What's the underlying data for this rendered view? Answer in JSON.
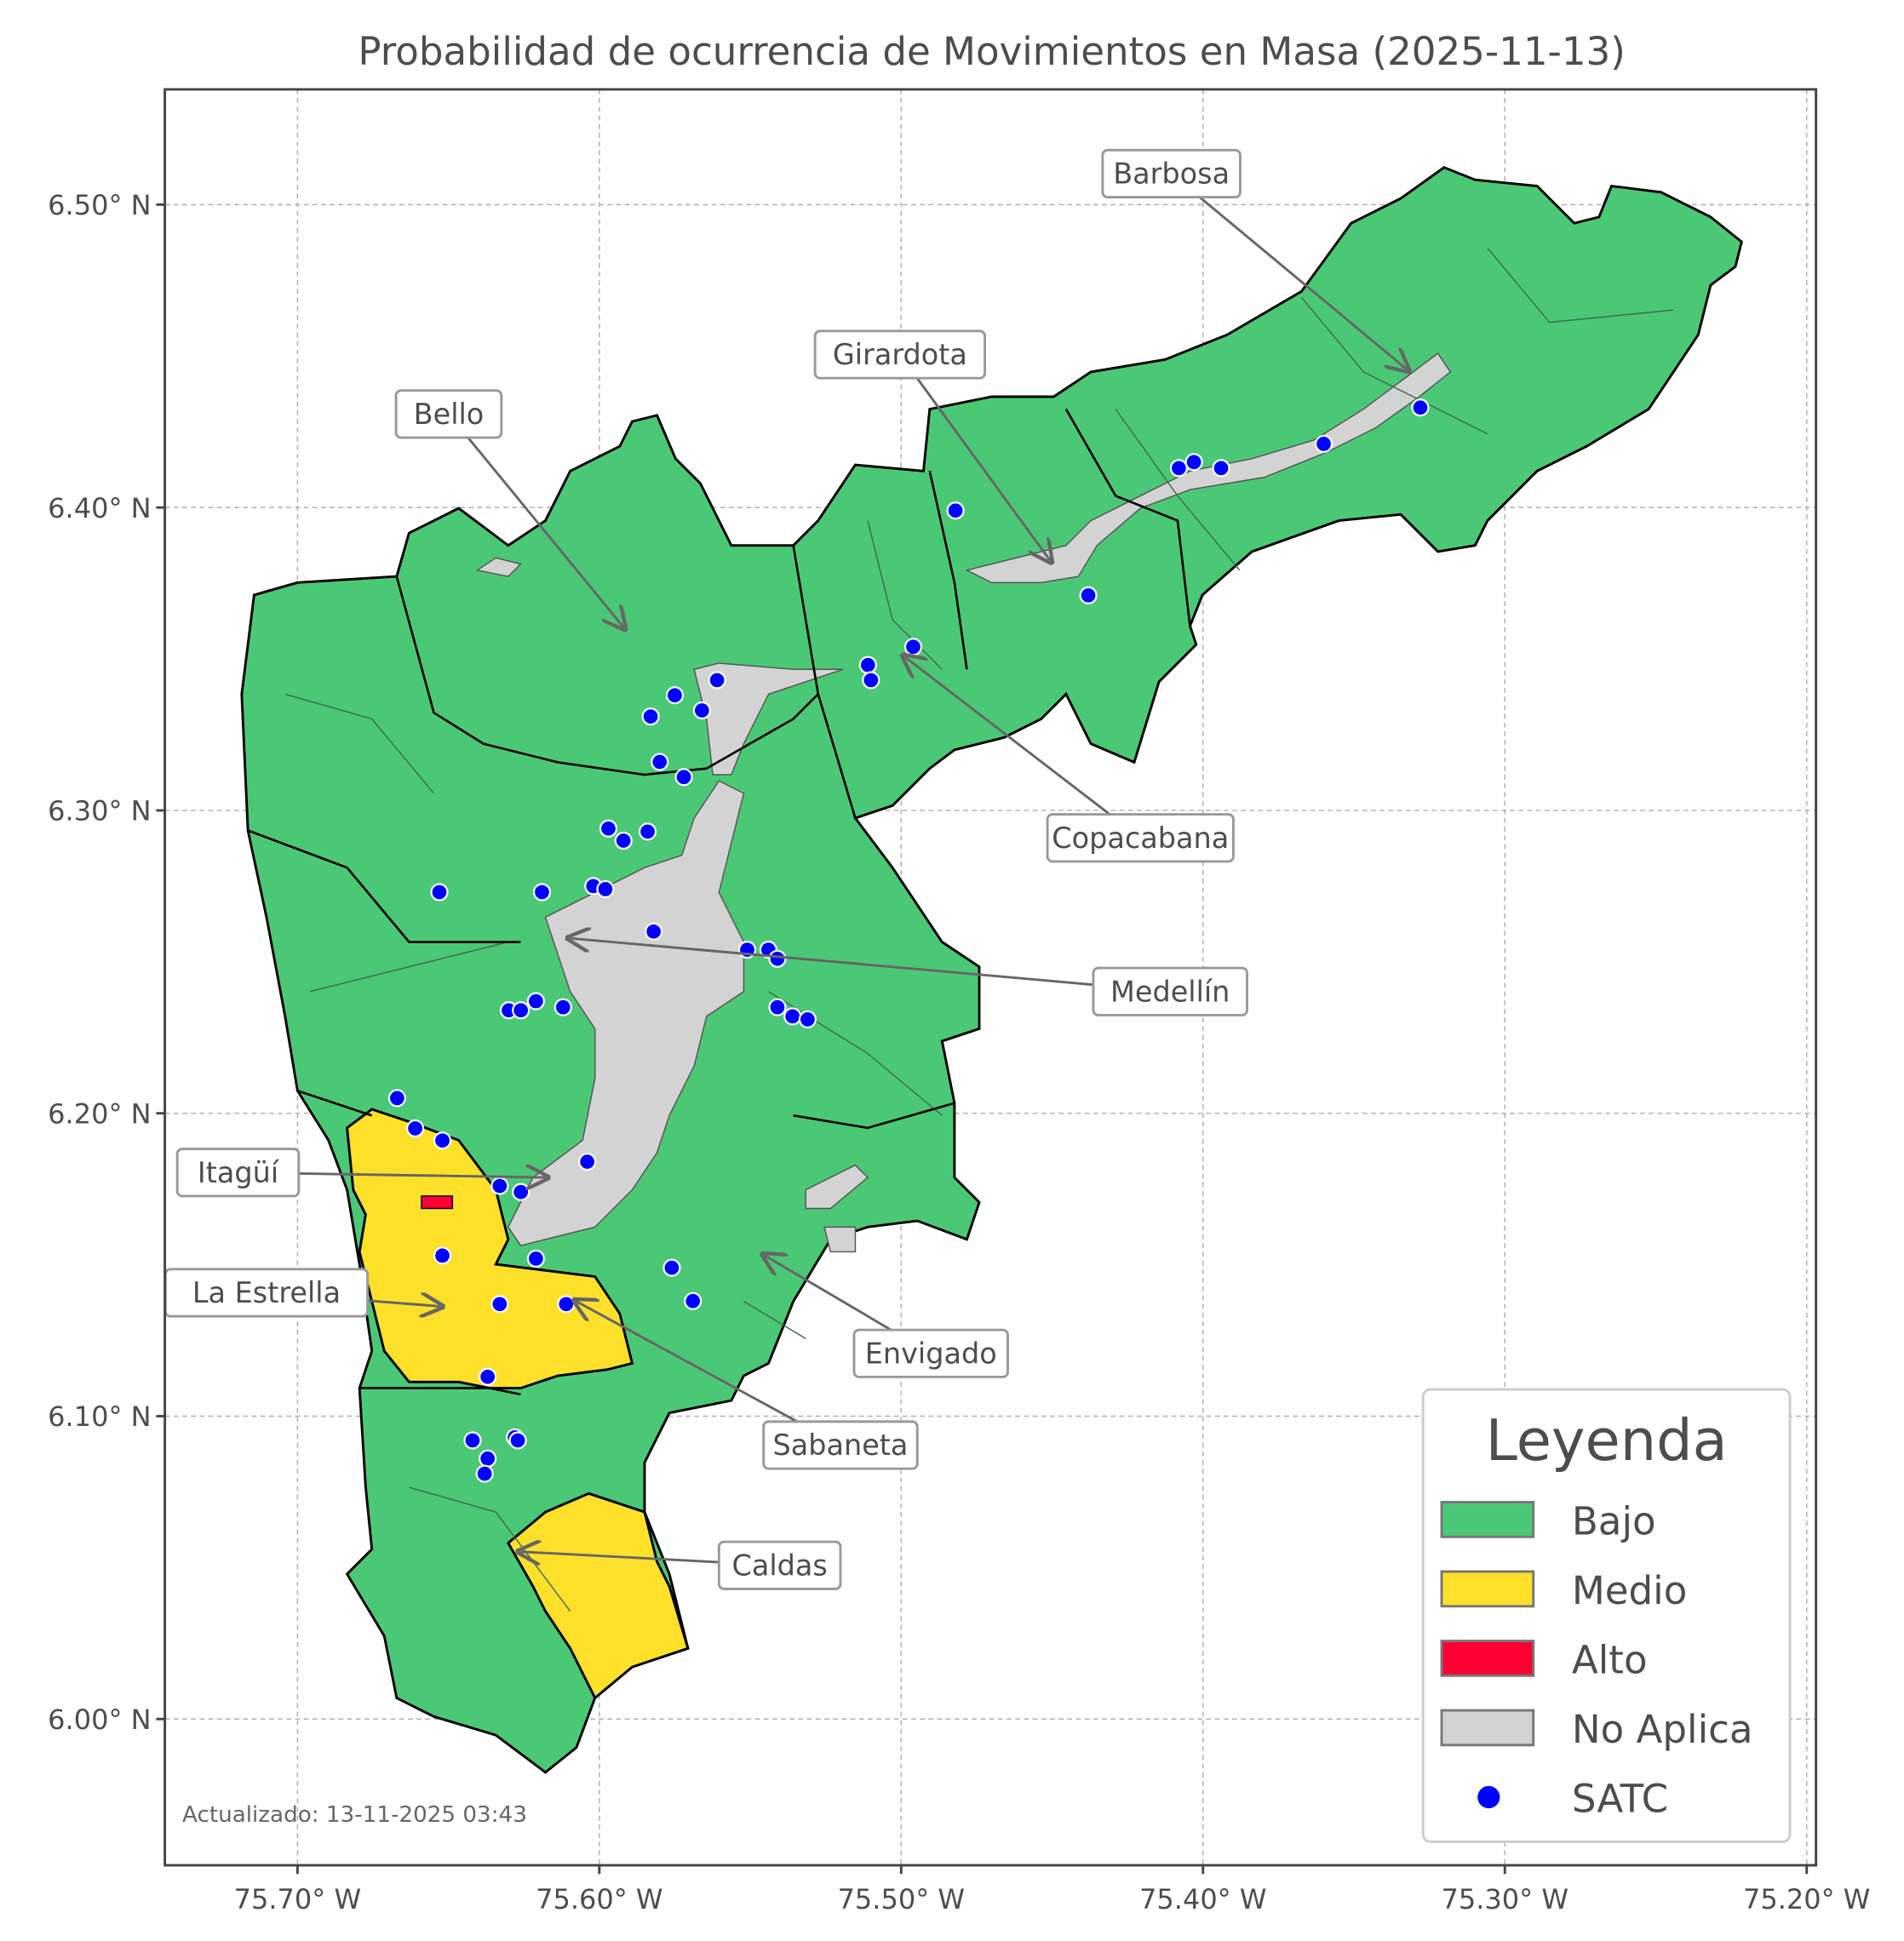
{
  "title": "Probabilidad de ocurrencia de Movimientos en Masa (2025-11-13)",
  "footer": "Actualizado: 13-11-2025 03:43",
  "axes": {
    "x_ticks": [
      {
        "value": -75.7,
        "label": "75.70° W"
      },
      {
        "value": -75.6,
        "label": "75.60° W"
      },
      {
        "value": -75.5,
        "label": "75.50° W"
      },
      {
        "value": -75.4,
        "label": "75.40° W"
      },
      {
        "value": -75.3,
        "label": "75.30° W"
      },
      {
        "value": -75.2,
        "label": "75.20° W"
      }
    ],
    "y_ticks": [
      {
        "value": 6.5,
        "label": "6.50° N"
      },
      {
        "value": 6.4,
        "label": "6.40° N"
      },
      {
        "value": 6.3,
        "label": "6.30° N"
      },
      {
        "value": 6.2,
        "label": "6.20° N"
      },
      {
        "value": 6.1,
        "label": "6.10° N"
      },
      {
        "value": 6.0,
        "label": "6.00° N"
      }
    ],
    "grid": true
  },
  "colors": {
    "bajo": "#4bc876",
    "medio": "#fde02a",
    "alto": "#ff0033",
    "no_aplica": "#d3d3d3",
    "satc": "#0000ff"
  },
  "legend": {
    "title": "Leyenda",
    "placement": "bottom-right",
    "items": [
      {
        "label": "Bajo",
        "kind": "patch",
        "color": "#4bc876"
      },
      {
        "label": "Medio",
        "kind": "patch",
        "color": "#fde02a"
      },
      {
        "label": "Alto",
        "kind": "patch",
        "color": "#ff0033"
      },
      {
        "label": "No Aplica",
        "kind": "patch",
        "color": "#d3d3d3"
      },
      {
        "label": "SATC",
        "kind": "point",
        "color": "#0000ff"
      }
    ]
  },
  "municipalities": [
    {
      "name": "Barbosa",
      "level": "Bajo"
    },
    {
      "name": "Girardota",
      "level": "Bajo"
    },
    {
      "name": "Bello",
      "level": "Bajo"
    },
    {
      "name": "Copacabana",
      "level": "Bajo"
    },
    {
      "name": "Medellín",
      "level": "Bajo"
    },
    {
      "name": "Itagüí",
      "level": "Medio"
    },
    {
      "name": "La Estrella",
      "level": "Medio"
    },
    {
      "name": "Sabaneta",
      "level": "Medio"
    },
    {
      "name": "Envigado",
      "level": "Bajo"
    },
    {
      "name": "Caldas",
      "level": "Medio"
    }
  ],
  "satc_points": [
    [
      -75.328,
      6.433
    ],
    [
      -75.36,
      6.421
    ],
    [
      -75.394,
      6.413
    ],
    [
      -75.403,
      6.415
    ],
    [
      -75.408,
      6.413
    ],
    [
      -75.482,
      6.399
    ],
    [
      -75.438,
      6.371
    ],
    [
      -75.496,
      6.354
    ],
    [
      -75.511,
      6.348
    ],
    [
      -75.51,
      6.343
    ],
    [
      -75.561,
      6.343
    ],
    [
      -75.575,
      6.338
    ],
    [
      -75.566,
      6.333
    ],
    [
      -75.583,
      6.331
    ],
    [
      -75.58,
      6.316
    ],
    [
      -75.572,
      6.311
    ],
    [
      -75.597,
      6.294
    ],
    [
      -75.592,
      6.29
    ],
    [
      -75.584,
      6.293
    ],
    [
      -75.653,
      6.273
    ],
    [
      -75.619,
      6.273
    ],
    [
      -75.602,
      6.275
    ],
    [
      -75.598,
      6.274
    ],
    [
      -75.582,
      6.26
    ],
    [
      -75.551,
      6.254
    ],
    [
      -75.544,
      6.254
    ],
    [
      -75.541,
      6.251
    ],
    [
      -75.541,
      6.235
    ],
    [
      -75.536,
      6.232
    ],
    [
      -75.531,
      6.231
    ],
    [
      -75.621,
      6.237
    ],
    [
      -75.612,
      6.235
    ],
    [
      -75.63,
      6.234
    ],
    [
      -75.626,
      6.234
    ],
    [
      -75.667,
      6.205
    ],
    [
      -75.661,
      6.195
    ],
    [
      -75.652,
      6.191
    ],
    [
      -75.604,
      6.184
    ],
    [
      -75.633,
      6.176
    ],
    [
      -75.626,
      6.174
    ],
    [
      -75.652,
      6.153
    ],
    [
      -75.621,
      6.152
    ],
    [
      -75.576,
      6.149
    ],
    [
      -75.569,
      6.138
    ],
    [
      -75.633,
      6.137
    ],
    [
      -75.611,
      6.137
    ],
    [
      -75.637,
      6.113
    ],
    [
      -75.642,
      6.092
    ],
    [
      -75.628,
      6.093
    ],
    [
      -75.627,
      6.092
    ],
    [
      -75.637,
      6.086
    ],
    [
      -75.638,
      6.081
    ]
  ]
}
